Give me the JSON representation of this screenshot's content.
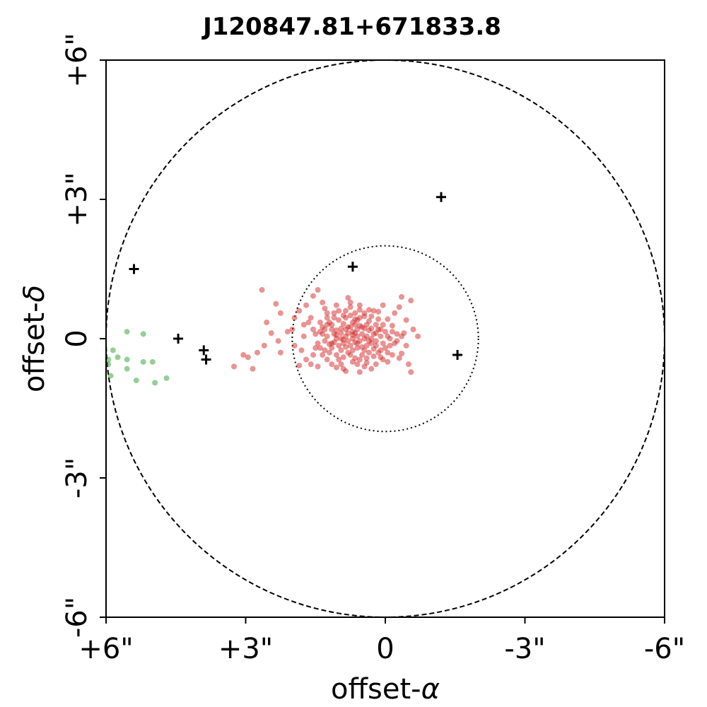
{
  "chart_data": {
    "type": "scatter",
    "title": "J120847.81+671833.8",
    "xlabel_text": "offset-",
    "xlabel_symbol": "α",
    "ylabel_text": "offset-",
    "ylabel_symbol": "δ",
    "xlim": [
      6,
      -6
    ],
    "ylim": [
      -6,
      6
    ],
    "x_ticks": [
      6,
      3,
      0,
      -3,
      -6
    ],
    "x_tick_labels": [
      "+6\"",
      "+3\"",
      "0",
      "-3\"",
      "-6\""
    ],
    "y_ticks": [
      -6,
      -3,
      0,
      3,
      6
    ],
    "y_tick_labels": [
      "-6\"",
      "-3\"",
      "0",
      "+3\"",
      "+6\""
    ],
    "grid": false,
    "circles": [
      {
        "name": "outer-dashed-circle",
        "center": [
          0,
          0
        ],
        "radius": 6,
        "style": "dashed"
      },
      {
        "name": "inner-dotted-circle",
        "center": [
          0,
          0
        ],
        "radius": 2,
        "style": "dotted"
      }
    ],
    "series": [
      {
        "kind": "red-points",
        "color": "#d62728",
        "marker": "circle",
        "points": [
          [
            2.65,
            1.05
          ],
          [
            2.35,
            0.75
          ],
          [
            2.25,
            0.55
          ],
          [
            2.55,
            0.35
          ],
          [
            2.45,
            0.12
          ],
          [
            2.3,
            -0.05
          ],
          [
            2.6,
            -0.15
          ],
          [
            2.75,
            -0.3
          ],
          [
            2.95,
            -0.4
          ],
          [
            3.25,
            -0.6
          ],
          [
            2.85,
            -0.65
          ],
          [
            2.25,
            -0.3
          ],
          [
            2.1,
            0.15
          ],
          [
            2.0,
            0.2
          ],
          [
            1.95,
            0.45
          ],
          [
            1.85,
            0.6
          ],
          [
            1.7,
            0.72
          ],
          [
            1.55,
            0.92
          ],
          [
            1.45,
            1.05
          ],
          [
            1.35,
            0.78
          ],
          [
            1.25,
            0.55
          ],
          [
            1.65,
            0.35
          ],
          [
            1.75,
            0.05
          ],
          [
            1.8,
            -0.25
          ],
          [
            1.7,
            -0.45
          ],
          [
            1.85,
            -0.58
          ],
          [
            1.55,
            -0.35
          ],
          [
            1.6,
            -0.55
          ],
          [
            1.4,
            -0.2
          ],
          [
            1.5,
            0.1
          ],
          [
            1.35,
            0.25
          ],
          [
            1.25,
            -0.45
          ],
          [
            1.05,
            -0.62
          ],
          [
            0.95,
            -0.55
          ],
          [
            0.85,
            -0.7
          ],
          [
            0.7,
            -0.5
          ],
          [
            0.55,
            -0.72
          ],
          [
            0.45,
            -0.6
          ],
          [
            0.3,
            -0.65
          ],
          [
            0.1,
            -0.4
          ],
          [
            -0.05,
            -0.3
          ],
          [
            -0.3,
            -0.42
          ],
          [
            -0.5,
            -0.55
          ],
          [
            -0.55,
            -0.72
          ],
          [
            -0.35,
            -0.32
          ],
          [
            -0.25,
            0.1
          ],
          [
            -0.15,
            0.28
          ],
          [
            -0.05,
            0.42
          ],
          [
            -0.2,
            0.55
          ],
          [
            -0.3,
            0.68
          ],
          [
            -0.45,
            0.4
          ],
          [
            -0.6,
            0.2
          ],
          [
            -0.7,
            0.05
          ],
          [
            -0.55,
            0.82
          ],
          [
            -0.35,
            0.9
          ],
          [
            0.05,
            0.72
          ],
          [
            0.25,
            0.6
          ],
          [
            0.45,
            0.48
          ],
          [
            0.8,
            0.88
          ],
          [
            0.75,
            0.68
          ],
          [
            0.55,
            0.62
          ],
          [
            0.65,
            0.42
          ],
          [
            1.1,
            0.55
          ],
          [
            1.15,
            0.3
          ],
          [
            1.0,
            0.4
          ],
          [
            0.95,
            0.22
          ],
          [
            1.05,
            0.0
          ],
          [
            1.15,
            -0.2
          ],
          [
            1.2,
            -0.3
          ],
          [
            1.05,
            -0.35
          ],
          [
            0.9,
            -0.4
          ],
          [
            0.8,
            -0.3
          ],
          [
            0.7,
            -0.25
          ],
          [
            0.6,
            -0.2
          ],
          [
            0.5,
            -0.18
          ],
          [
            0.4,
            -0.15
          ],
          [
            0.3,
            -0.1
          ],
          [
            0.2,
            -0.05
          ],
          [
            0.25,
            0.1
          ],
          [
            0.35,
            0.18
          ],
          [
            0.45,
            0.22
          ],
          [
            0.55,
            0.28
          ],
          [
            0.65,
            0.3
          ],
          [
            0.75,
            0.25
          ],
          [
            0.85,
            0.2
          ],
          [
            0.95,
            0.12
          ],
          [
            1.1,
            0.1
          ],
          [
            1.25,
            0.05
          ],
          [
            1.3,
            -0.05
          ],
          [
            1.2,
            -0.12
          ],
          [
            1.1,
            -0.08
          ],
          [
            1.0,
            -0.15
          ],
          [
            0.9,
            -0.1
          ],
          [
            0.8,
            -0.05
          ],
          [
            0.7,
            0.0
          ],
          [
            0.6,
            0.05
          ],
          [
            0.5,
            0.1
          ],
          [
            0.4,
            0.05
          ],
          [
            0.3,
            0.0
          ],
          [
            0.2,
            -0.15
          ],
          [
            0.15,
            0.2
          ],
          [
            0.1,
            0.05
          ],
          [
            0.05,
            -0.1
          ],
          [
            0.0,
            0.15
          ],
          [
            -0.1,
            0.0
          ],
          [
            -0.1,
            -0.15
          ],
          [
            -0.2,
            -0.1
          ],
          [
            0.35,
            -0.3
          ],
          [
            0.5,
            -0.35
          ],
          [
            0.65,
            -0.42
          ],
          [
            0.8,
            0.12
          ],
          [
            0.9,
            0.32
          ],
          [
            0.7,
            0.15
          ],
          [
            0.6,
            -0.1
          ],
          [
            0.45,
            -0.25
          ],
          [
            1.0,
            0.6
          ],
          [
            0.85,
            0.45
          ],
          [
            0.55,
            0.45
          ],
          [
            0.35,
            0.38
          ],
          [
            0.15,
            0.42
          ],
          [
            1.3,
            0.2
          ],
          [
            1.4,
            0.35
          ],
          [
            1.45,
            -0.1
          ],
          [
            1.35,
            -0.35
          ],
          [
            1.15,
            0.2
          ],
          [
            0.75,
            -0.15
          ],
          [
            0.65,
            0.12
          ],
          [
            0.5,
            0.25
          ],
          [
            0.4,
            0.3
          ],
          [
            0.25,
            -0.22
          ],
          [
            0.95,
            -0.25
          ],
          [
            1.05,
            0.18
          ],
          [
            0.85,
            0.05
          ],
          [
            0.7,
            0.35
          ],
          [
            0.6,
            0.4
          ],
          [
            0.3,
            0.22
          ],
          [
            0.2,
            0.3
          ],
          [
            0.1,
            -0.25
          ],
          [
            0.0,
            -0.2
          ],
          [
            -0.05,
            0.05
          ],
          [
            1.2,
            0.35
          ],
          [
            1.3,
            -0.25
          ],
          [
            1.0,
            -0.45
          ],
          [
            0.9,
            0.5
          ],
          [
            0.75,
            -0.35
          ],
          [
            0.55,
            -0.45
          ],
          [
            0.4,
            -0.42
          ],
          [
            0.25,
            -0.38
          ],
          [
            0.15,
            -0.3
          ],
          [
            0.05,
            0.3
          ],
          [
            -0.15,
            0.15
          ],
          [
            -0.25,
            -0.05
          ],
          [
            -0.4,
            0.12
          ],
          [
            0.85,
            -0.18
          ],
          [
            0.6,
            0.2
          ],
          [
            0.45,
            0.0
          ],
          [
            0.35,
            -0.05
          ],
          [
            0.95,
            0.0
          ],
          [
            1.05,
            0.08
          ],
          [
            1.15,
            -0.1
          ],
          [
            0.7,
            0.08
          ],
          [
            0.55,
            -0.05
          ],
          [
            0.8,
            0.25
          ],
          [
            0.9,
            -0.02
          ],
          [
            0.65,
            -0.08
          ],
          [
            1.25,
            0.3
          ],
          [
            1.35,
            0.1
          ],
          [
            1.4,
            0.15
          ],
          [
            1.5,
            -0.2
          ],
          [
            1.55,
            0.2
          ],
          [
            3.05,
            -0.35
          ],
          [
            1.95,
            -0.15
          ],
          [
            1.75,
            0.3
          ],
          [
            1.6,
            0.45
          ],
          [
            1.3,
            0.65
          ],
          [
            1.05,
            0.72
          ],
          [
            0.75,
            0.78
          ],
          [
            0.55,
            0.72
          ],
          [
            0.35,
            0.62
          ],
          [
            0.15,
            0.58
          ],
          [
            0.2,
            -0.55
          ],
          [
            -0.05,
            -0.5
          ],
          [
            -0.35,
            0.05
          ],
          [
            -0.45,
            -0.15
          ],
          [
            0.9,
            -0.65
          ],
          [
            1.15,
            -0.55
          ],
          [
            1.45,
            -0.6
          ],
          [
            0.3,
            0.48
          ],
          [
            0.05,
            -0.45
          ],
          [
            0.65,
            0.55
          ],
          [
            0.85,
            0.6
          ],
          [
            1.1,
            0.45
          ],
          [
            1.25,
            0.45
          ],
          [
            0.45,
            0.55
          ],
          [
            0.2,
            0.12
          ],
          [
            0.1,
            0.2
          ],
          [
            -0.15,
            -0.35
          ],
          [
            0.6,
            -0.55
          ],
          [
            0.4,
            -0.52
          ],
          [
            0.75,
            0.5
          ]
        ]
      },
      {
        "kind": "green-points",
        "color": "#2ca02c",
        "marker": "circle",
        "points": [
          [
            5.55,
            0.15
          ],
          [
            5.85,
            -0.25
          ],
          [
            5.75,
            -0.4
          ],
          [
            5.95,
            -0.45
          ],
          [
            5.95,
            -0.55
          ],
          [
            5.9,
            -0.8
          ],
          [
            5.55,
            -0.45
          ],
          [
            5.55,
            -0.65
          ],
          [
            5.2,
            0.1
          ],
          [
            5.0,
            -0.5
          ],
          [
            5.2,
            -0.5
          ],
          [
            5.35,
            -0.9
          ],
          [
            4.95,
            -0.95
          ],
          [
            4.7,
            -0.85
          ]
        ]
      },
      {
        "kind": "black-plus-markers",
        "color": "#000000",
        "marker": "plus",
        "points": [
          [
            -1.2,
            3.05
          ],
          [
            0.7,
            1.55
          ],
          [
            5.4,
            1.5
          ],
          [
            4.45,
            0.0
          ],
          [
            3.9,
            -0.25
          ],
          [
            3.85,
            -0.45
          ],
          [
            -1.55,
            -0.35
          ]
        ]
      }
    ]
  }
}
